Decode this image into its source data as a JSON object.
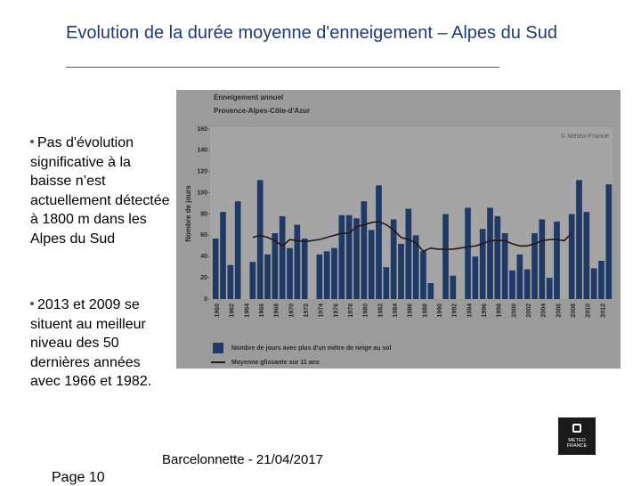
{
  "title": "Evolution de la durée moyenne d'enneigement – Alpes du Sud",
  "bullets": [
    "Pas d'évolution significative à la baisse n’est actuellement détectée à 1800 m dans les Alpes du Sud",
    "2013 et 2009 se situent au meilleur niveau des 50 dernières années avec 1966 et 1982."
  ],
  "footer": "Barcelonnette - 21/04/2017",
  "page": "Page 10",
  "logo": [
    "METEO",
    "FRANCE"
  ],
  "chart_data": {
    "type": "bar",
    "title": "Enneigement annuel",
    "subtitle": "Provence-Alpes-Côte-d'Azur",
    "credit": "© Météo-France",
    "ylabel": "Nombre de jours",
    "categories": [
      "1960",
      null,
      "1962",
      null,
      "1964",
      null,
      "1966",
      null,
      "1968",
      null,
      "1970",
      null,
      "1972",
      null,
      "1974",
      null,
      "1976",
      null,
      "1978",
      null,
      "1980",
      null,
      "1982",
      null,
      "1984",
      null,
      "1986",
      null,
      "1988",
      null,
      "1990",
      null,
      "1992",
      null,
      "1994",
      null,
      "1996",
      null,
      "1998",
      null,
      "2000",
      null,
      "2002",
      null,
      "2004",
      null,
      "2006",
      null,
      "2008",
      null,
      "2010",
      null,
      "2012",
      null
    ],
    "series": [
      {
        "name": "Nombre de jours avec plus d'un mètre de neige au sol",
        "type": "bar",
        "color": "#1f3a66",
        "values": [
          57,
          82,
          32,
          92,
          null,
          35,
          112,
          42,
          62,
          78,
          48,
          70,
          57,
          null,
          42,
          45,
          48,
          79,
          79,
          76,
          92,
          65,
          107,
          30,
          75,
          52,
          85,
          60,
          45,
          15,
          null,
          80,
          22,
          null,
          86,
          40,
          66,
          86,
          78,
          62,
          27,
          42,
          28,
          62,
          75,
          20,
          73,
          null,
          80,
          112,
          82,
          29,
          36,
          108
        ]
      },
      {
        "name": "Moyenne glissante sur 11 ans",
        "type": "line",
        "color": "#2a1616",
        "values": [
          null,
          null,
          null,
          null,
          null,
          58,
          60,
          58,
          55,
          50,
          56,
          55,
          54,
          55,
          56,
          58,
          60,
          62,
          62,
          68,
          70,
          72,
          73,
          70,
          65,
          58,
          56,
          53,
          45,
          48,
          47,
          47,
          47,
          48,
          49,
          50,
          52,
          55,
          55,
          55,
          52,
          50,
          50,
          52,
          55,
          56,
          56,
          55,
          62,
          null,
          null,
          null,
          null,
          null
        ]
      }
    ],
    "ylim": [
      0,
      160
    ],
    "yticks": [
      0,
      20,
      40,
      60,
      80,
      100,
      120,
      140,
      160
    ]
  }
}
